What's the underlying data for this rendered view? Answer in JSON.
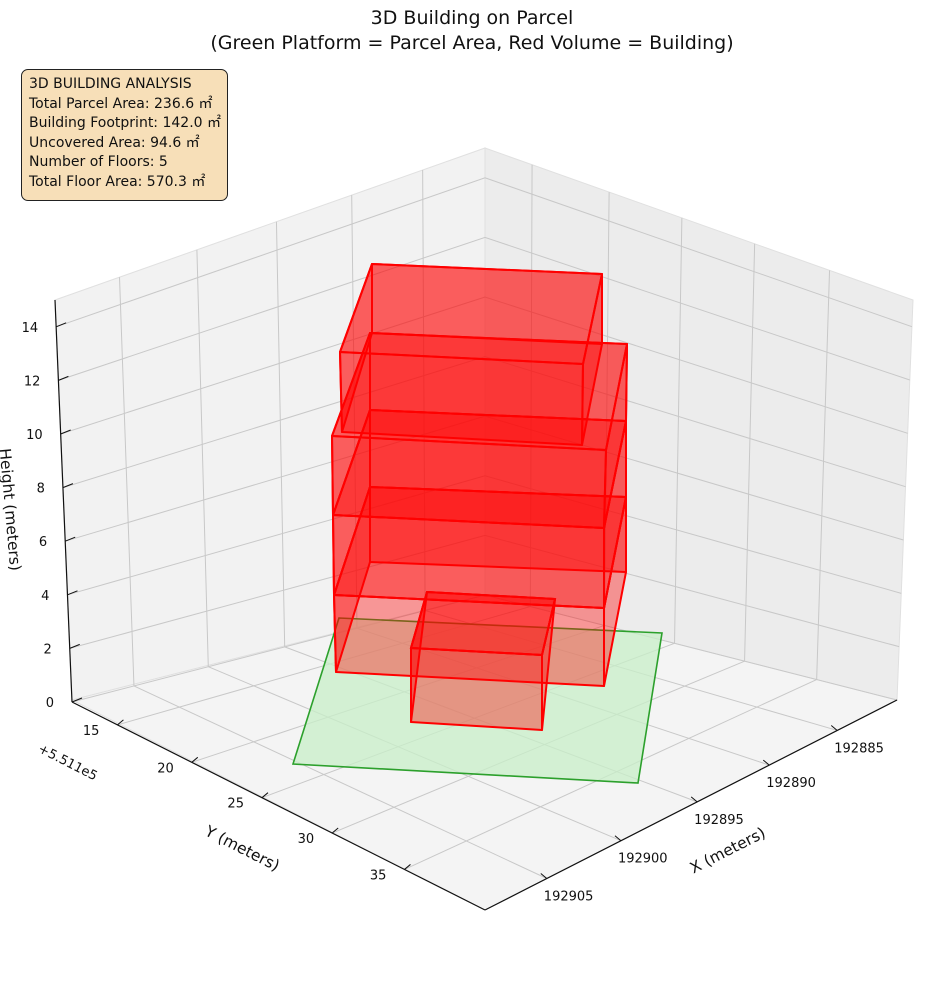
{
  "chart_data": {
    "type": "3d-bar",
    "title_line1": "3D Building on Parcel",
    "title_line2": "(Green Platform = Parcel Area, Red Volume = Building)",
    "xlabel": "X (meters)",
    "ylabel": "Y (meters)",
    "zlabel": "Height (meters)",
    "y_offset_label": "+5.511e5",
    "x_ticks": [
      "192885",
      "192890",
      "192895",
      "192900",
      "192905"
    ],
    "y_ticks": [
      "15",
      "20",
      "25",
      "30",
      "35"
    ],
    "z_ticks": [
      "0",
      "2",
      "4",
      "6",
      "8",
      "10",
      "12",
      "14"
    ],
    "zlim": [
      0,
      15
    ],
    "grid": true,
    "colors": {
      "parcel": "#2ca02c",
      "building": "#ff0000"
    },
    "info": {
      "line1": "3D BUILDING ANALYSIS",
      "line2": "Total Parcel Area: 236.6 ㎡",
      "line3": "Building Footprint: 142.0 ㎡",
      "line4": "Uncovered Area: 94.6 ㎡",
      "line5": "Number of Floors: 5",
      "line6": "Total Floor Area: 570.3 ㎡"
    }
  }
}
